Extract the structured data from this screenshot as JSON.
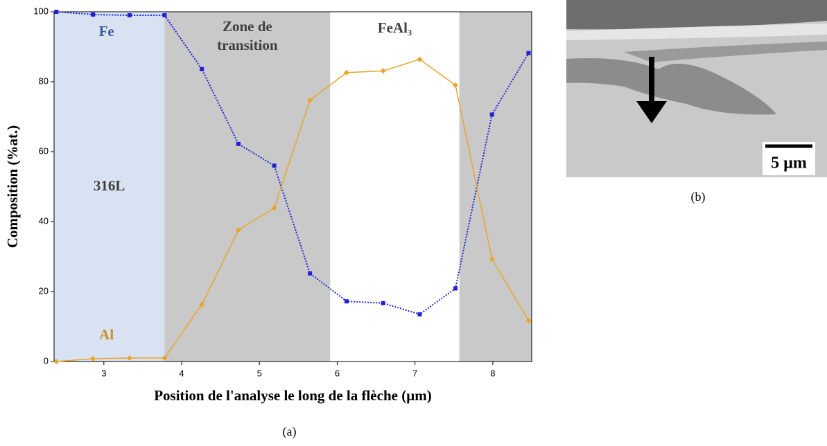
{
  "chart_data": {
    "type": "line",
    "x_label": "Position de l'analyse le long de la flèche (µm)",
    "y_label": "Composition (%at.)",
    "caption": "(a)",
    "x": [
      2.39,
      2.86,
      3.33,
      3.78,
      4.26,
      4.73,
      5.19,
      5.65,
      6.12,
      6.59,
      7.06,
      7.52,
      7.99,
      8.46
    ],
    "series": [
      {
        "name": "Fe",
        "color": "#2020d8",
        "label_color": "#3b5a96",
        "style": "dotted",
        "marker": "square",
        "values": [
          100,
          99.2,
          99,
          99,
          83.6,
          62.2,
          56,
          25.2,
          17.2,
          16.7,
          13.5,
          20.9,
          70.6,
          88.2
        ]
      },
      {
        "name": "Al",
        "color": "#e8a628",
        "label_color": "#c8921e",
        "style": "solid",
        "marker": "diamond",
        "values": [
          0,
          0.8,
          1,
          1,
          16.3,
          37.6,
          43.9,
          74.7,
          82.6,
          83.1,
          86.4,
          79,
          29.3,
          11.7
        ]
      }
    ],
    "zones": [
      {
        "from": 2.36,
        "to": 3.78,
        "color": "#d9e2f3",
        "label": [
          "316L"
        ]
      },
      {
        "from": 3.78,
        "to": 5.91,
        "color": "#c9c9c9",
        "label": [
          "Zone de",
          "transition"
        ]
      },
      {
        "from": 5.91,
        "to": 7.57,
        "color": "#ffffff",
        "label": [
          "FeAl₃"
        ]
      },
      {
        "from": 7.57,
        "to": 8.5,
        "color": "#c9c9c9",
        "label": []
      }
    ],
    "xlim": [
      2.36,
      8.5
    ],
    "ylim": [
      0,
      100
    ],
    "xticks": [
      3,
      4,
      5,
      6,
      7,
      8
    ],
    "yticks": [
      0,
      20,
      40,
      60,
      80,
      100
    ]
  },
  "image": {
    "scale_label": "5 µm",
    "caption": "(b)"
  }
}
